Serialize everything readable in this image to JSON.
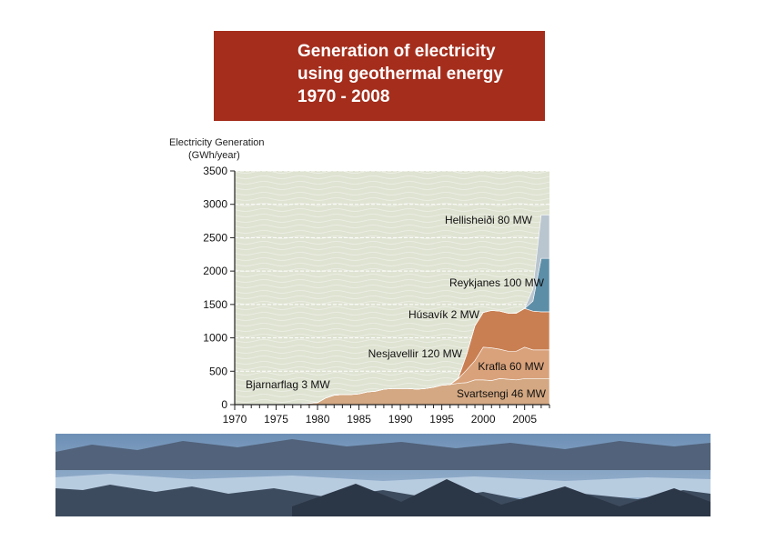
{
  "title": {
    "line1": "Generation of electricity",
    "line2": "using geothermal energy",
    "line3": "1970 - 2008"
  },
  "colors": {
    "title_bg": "#a42d1c",
    "plot_bg": "#dfe3d2",
    "hellisheidi": "#b9c5cf",
    "reykjanes": "#5d8ea8",
    "husavik": "#b34b1a",
    "nesjavellir": "#c97f52",
    "krafla": "#d9a27b",
    "svartsengi": "#d4a882",
    "bjarnarflag": "#8d8a6a"
  },
  "chart_data": {
    "type": "area",
    "title": "Generation of electricity using geothermal energy 1970 - 2008",
    "ylabel_line1": "Electricity Generation",
    "ylabel_line2": "(GWh/year)",
    "xlim": [
      1970,
      2008
    ],
    "ylim": [
      0,
      3500
    ],
    "xticks": [
      1970,
      1975,
      1980,
      1985,
      1990,
      1995,
      2000,
      2005
    ],
    "yticks": [
      0,
      500,
      1000,
      1500,
      2000,
      2500,
      3000,
      3500
    ],
    "legend_placement": "inline labels",
    "stacked": true,
    "series": [
      {
        "name": "Svartsengi 46 MW",
        "color": "#d4a882",
        "points": [
          [
            1970,
            0
          ],
          [
            1976,
            0
          ],
          [
            1978,
            10
          ],
          [
            1980,
            30
          ],
          [
            1981,
            100
          ],
          [
            1982,
            140
          ],
          [
            1983,
            150
          ],
          [
            1984,
            150
          ],
          [
            1985,
            160
          ],
          [
            1986,
            190
          ],
          [
            1987,
            200
          ],
          [
            1988,
            230
          ],
          [
            1989,
            240
          ],
          [
            1990,
            240
          ],
          [
            1991,
            240
          ],
          [
            1992,
            230
          ],
          [
            1993,
            240
          ],
          [
            1994,
            260
          ],
          [
            1995,
            290
          ],
          [
            1996,
            300
          ],
          [
            1997,
            320
          ],
          [
            1998,
            330
          ],
          [
            1999,
            370
          ],
          [
            2000,
            370
          ],
          [
            2001,
            360
          ],
          [
            2002,
            390
          ],
          [
            2003,
            380
          ],
          [
            2004,
            370
          ],
          [
            2005,
            390
          ],
          [
            2006,
            390
          ],
          [
            2007,
            390
          ],
          [
            2008,
            390
          ]
        ]
      },
      {
        "name": "Krafla 60 MW",
        "color": "#d9a27b",
        "points": [
          [
            1970,
            0
          ],
          [
            1976,
            0
          ],
          [
            1978,
            0
          ],
          [
            1980,
            0
          ],
          [
            1981,
            0
          ],
          [
            1982,
            0
          ],
          [
            1983,
            0
          ],
          [
            1984,
            0
          ],
          [
            1985,
            0
          ],
          [
            1986,
            0
          ],
          [
            1987,
            0
          ],
          [
            1988,
            0
          ],
          [
            1989,
            0
          ],
          [
            1990,
            0
          ],
          [
            1991,
            0
          ],
          [
            1992,
            0
          ],
          [
            1993,
            0
          ],
          [
            1994,
            0
          ],
          [
            1995,
            0
          ],
          [
            1996,
            0
          ],
          [
            1997,
            70
          ],
          [
            1998,
            190
          ],
          [
            1999,
            290
          ],
          [
            2000,
            490
          ],
          [
            2001,
            490
          ],
          [
            2002,
            440
          ],
          [
            2003,
            420
          ],
          [
            2004,
            430
          ],
          [
            2005,
            470
          ],
          [
            2006,
            430
          ],
          [
            2007,
            430
          ],
          [
            2008,
            430
          ]
        ]
      },
      {
        "name": "Nesjavellir 120 MW",
        "color": "#c97f52",
        "points": [
          [
            1970,
            0
          ],
          [
            1976,
            0
          ],
          [
            1978,
            0
          ],
          [
            1980,
            0
          ],
          [
            1981,
            0
          ],
          [
            1982,
            0
          ],
          [
            1983,
            0
          ],
          [
            1984,
            0
          ],
          [
            1985,
            0
          ],
          [
            1986,
            0
          ],
          [
            1987,
            0
          ],
          [
            1988,
            0
          ],
          [
            1989,
            0
          ],
          [
            1990,
            0
          ],
          [
            1991,
            0
          ],
          [
            1992,
            0
          ],
          [
            1993,
            0
          ],
          [
            1994,
            0
          ],
          [
            1995,
            0
          ],
          [
            1996,
            0
          ],
          [
            1997,
            10
          ],
          [
            1998,
            230
          ],
          [
            1999,
            520
          ],
          [
            2000,
            520
          ],
          [
            2001,
            560
          ],
          [
            2002,
            570
          ],
          [
            2003,
            570
          ],
          [
            2004,
            570
          ],
          [
            2005,
            580
          ],
          [
            2006,
            580
          ],
          [
            2007,
            570
          ],
          [
            2008,
            570
          ]
        ]
      },
      {
        "name": "Reykjanes 100 MW",
        "color": "#5d8ea8",
        "points": [
          [
            1970,
            0
          ],
          [
            1976,
            0
          ],
          [
            1978,
            0
          ],
          [
            1980,
            0
          ],
          [
            1981,
            0
          ],
          [
            1982,
            0
          ],
          [
            1983,
            0
          ],
          [
            1984,
            0
          ],
          [
            1985,
            0
          ],
          [
            1986,
            0
          ],
          [
            1987,
            0
          ],
          [
            1988,
            0
          ],
          [
            1989,
            0
          ],
          [
            1990,
            0
          ],
          [
            1991,
            0
          ],
          [
            1992,
            0
          ],
          [
            1993,
            0
          ],
          [
            1994,
            0
          ],
          [
            1995,
            0
          ],
          [
            1996,
            0
          ],
          [
            1997,
            0
          ],
          [
            1998,
            0
          ],
          [
            1999,
            0
          ],
          [
            2000,
            0
          ],
          [
            2001,
            0
          ],
          [
            2002,
            0
          ],
          [
            2003,
            0
          ],
          [
            2004,
            0
          ],
          [
            2005,
            0
          ],
          [
            2006,
            150
          ],
          [
            2007,
            800
          ],
          [
            2008,
            800
          ]
        ]
      },
      {
        "name": "Hellisheiði 80 MW",
        "color": "#b9c5cf",
        "points": [
          [
            1970,
            0
          ],
          [
            1976,
            0
          ],
          [
            1978,
            0
          ],
          [
            1980,
            0
          ],
          [
            1981,
            0
          ],
          [
            1982,
            0
          ],
          [
            1983,
            0
          ],
          [
            1984,
            0
          ],
          [
            1985,
            0
          ],
          [
            1986,
            0
          ],
          [
            1987,
            0
          ],
          [
            1988,
            0
          ],
          [
            1989,
            0
          ],
          [
            1990,
            0
          ],
          [
            1991,
            0
          ],
          [
            1992,
            0
          ],
          [
            1993,
            0
          ],
          [
            1994,
            0
          ],
          [
            1995,
            0
          ],
          [
            1996,
            0
          ],
          [
            1997,
            0
          ],
          [
            1998,
            0
          ],
          [
            1999,
            0
          ],
          [
            2000,
            0
          ],
          [
            2001,
            0
          ],
          [
            2002,
            0
          ],
          [
            2003,
            0
          ],
          [
            2004,
            0
          ],
          [
            2005,
            0
          ],
          [
            2006,
            180
          ],
          [
            2007,
            650
          ],
          [
            2008,
            650
          ]
        ]
      }
    ],
    "annotations": {
      "bjarnarflag": "Bjarnarflag 3 MW",
      "husavik": "Húsavík 2 MW"
    }
  }
}
